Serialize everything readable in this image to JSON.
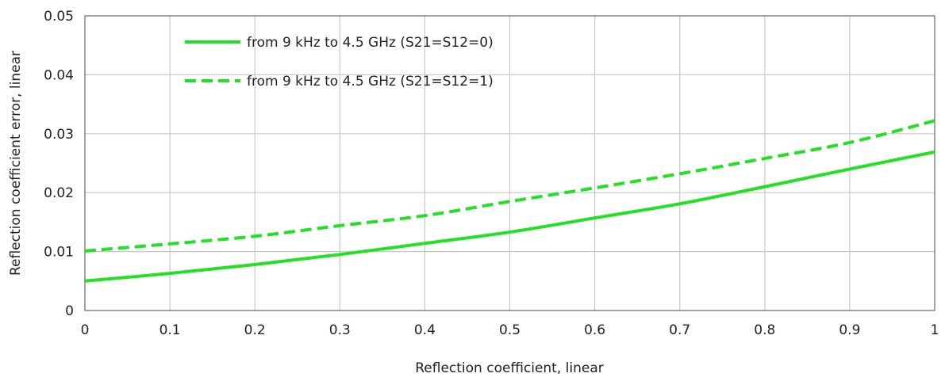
{
  "chart_data": {
    "type": "line",
    "title": "",
    "xlabel": "Reflection coefficient, linear",
    "ylabel": "Reflection coefficient error, linear",
    "xlim": [
      0,
      1
    ],
    "ylim": [
      0,
      0.05
    ],
    "x_ticks": [
      "0",
      "0.1",
      "0.2",
      "0.3",
      "0.4",
      "0.5",
      "0.6",
      "0.7",
      "0.8",
      "0.9",
      "1"
    ],
    "y_ticks": [
      "0",
      "0.01",
      "0.02",
      "0.03",
      "0.04",
      "0.05"
    ],
    "grid": true,
    "legend_position": "top-left",
    "x": [
      0,
      0.1,
      0.2,
      0.3,
      0.4,
      0.5,
      0.6,
      0.7,
      0.8,
      0.9,
      1.0
    ],
    "series": [
      {
        "name": "from 9 kHz to 4.5 GHz (S21=S12=0)",
        "style": "solid",
        "color": "#22e022",
        "values": [
          0.005,
          0.0063,
          0.0078,
          0.0095,
          0.0114,
          0.0133,
          0.0157,
          0.0181,
          0.021,
          0.024,
          0.0269
        ]
      },
      {
        "name": "from 9 kHz to 4.5 GHz (S21=S12=1)",
        "style": "dashed",
        "color": "#22e022",
        "values": [
          0.0101,
          0.0113,
          0.0126,
          0.0144,
          0.0161,
          0.0185,
          0.0208,
          0.0232,
          0.0258,
          0.0285,
          0.0322
        ]
      }
    ]
  }
}
